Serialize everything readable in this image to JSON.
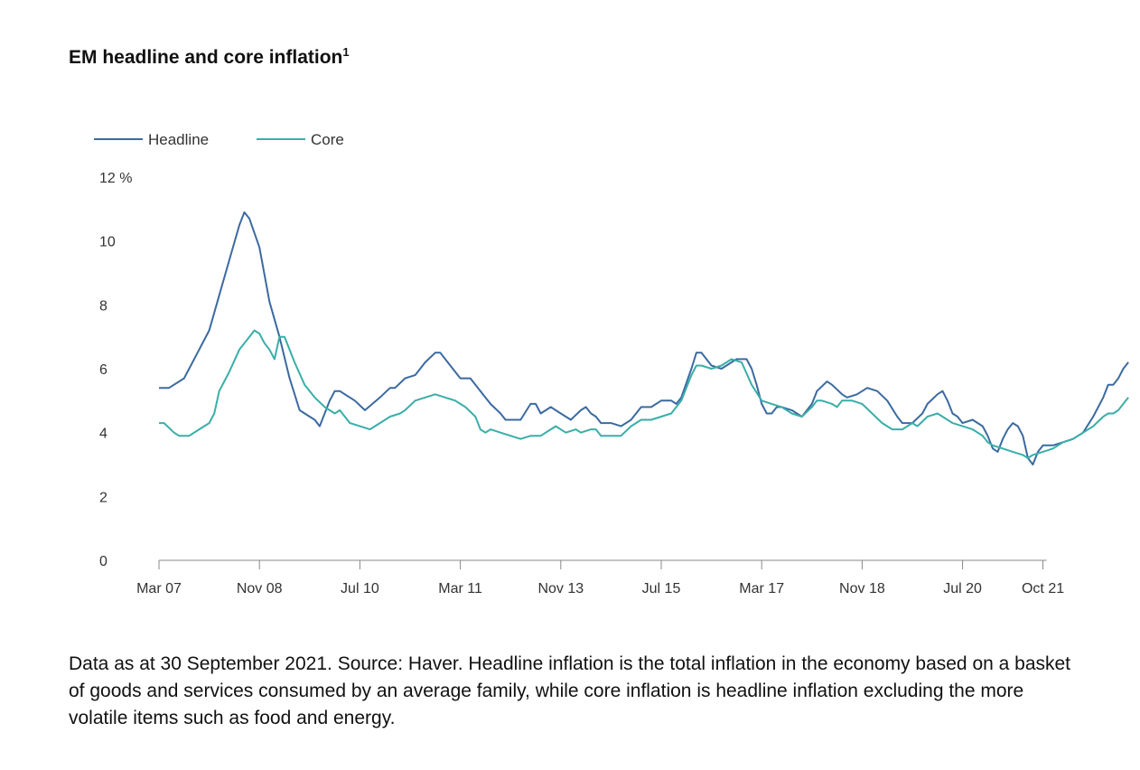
{
  "header": {
    "title": "EM headline and core inflation",
    "footnote_mark": "1"
  },
  "caption": "Data as at 30 September 2021. Source: Haver. Headline inflation is the total inflation in the economy based on a basket of goods and services consumed by an average family, while core inflation is headline inflation excluding the more volatile items such as food and energy.",
  "chart_data": {
    "type": "line",
    "title": "EM headline and core inflation",
    "xlabel": "",
    "ylabel": "%",
    "ylim": [
      0,
      12
    ],
    "y_ticks": [
      "0",
      "2",
      "4",
      "6",
      "8",
      "10",
      "12 %"
    ],
    "x_ticks": [
      {
        "label": "Mar 07",
        "pos": 0
      },
      {
        "label": "Nov 08",
        "pos": 20
      },
      {
        "label": "Jul 10",
        "pos": 40
      },
      {
        "label": "Mar 11",
        "pos": 60
      },
      {
        "label": "Nov 13",
        "pos": 80
      },
      {
        "label": "Jul 15",
        "pos": 100
      },
      {
        "label": "Mar 17",
        "pos": 120
      },
      {
        "label": "Nov 18",
        "pos": 140
      },
      {
        "label": "Jul 20",
        "pos": 160
      },
      {
        "label": "Oct 21",
        "pos": 176
      }
    ],
    "legend": {
      "placement": "top-left"
    },
    "series": [
      {
        "name": "Headline",
        "color": "#3b6aa0",
        "points": [
          [
            0,
            5.4
          ],
          [
            2,
            5.4
          ],
          [
            5,
            5.7
          ],
          [
            8,
            6.6
          ],
          [
            10,
            7.2
          ],
          [
            12,
            8.3
          ],
          [
            14,
            9.4
          ],
          [
            16,
            10.5
          ],
          [
            17,
            10.9
          ],
          [
            18,
            10.7
          ],
          [
            20,
            9.8
          ],
          [
            22,
            8.1
          ],
          [
            24,
            7.0
          ],
          [
            26,
            5.7
          ],
          [
            28,
            4.7
          ],
          [
            30,
            4.5
          ],
          [
            31,
            4.4
          ],
          [
            32,
            4.2
          ],
          [
            34,
            5.0
          ],
          [
            35,
            5.3
          ],
          [
            36,
            5.3
          ],
          [
            39,
            5.0
          ],
          [
            41,
            4.7
          ],
          [
            44,
            5.1
          ],
          [
            46,
            5.4
          ],
          [
            47,
            5.4
          ],
          [
            49,
            5.7
          ],
          [
            51,
            5.8
          ],
          [
            53,
            6.2
          ],
          [
            55,
            6.5
          ],
          [
            56,
            6.5
          ],
          [
            57,
            6.3
          ],
          [
            59,
            5.9
          ],
          [
            60,
            5.7
          ],
          [
            62,
            5.7
          ],
          [
            64,
            5.3
          ],
          [
            66,
            4.9
          ],
          [
            68,
            4.6
          ],
          [
            69,
            4.4
          ],
          [
            70,
            4.4
          ],
          [
            72,
            4.4
          ],
          [
            74,
            4.9
          ],
          [
            75,
            4.9
          ],
          [
            76,
            4.6
          ],
          [
            78,
            4.8
          ],
          [
            80,
            4.6
          ],
          [
            82,
            4.4
          ],
          [
            84,
            4.7
          ],
          [
            85,
            4.8
          ],
          [
            86,
            4.6
          ],
          [
            87,
            4.5
          ],
          [
            88,
            4.3
          ],
          [
            90,
            4.3
          ],
          [
            92,
            4.2
          ],
          [
            94,
            4.4
          ],
          [
            96,
            4.8
          ],
          [
            98,
            4.8
          ],
          [
            100,
            5.0
          ],
          [
            102,
            5.0
          ],
          [
            103,
            4.9
          ],
          [
            104,
            5.1
          ],
          [
            106,
            6.0
          ],
          [
            107,
            6.5
          ],
          [
            108,
            6.5
          ],
          [
            110,
            6.1
          ],
          [
            112,
            6.0
          ],
          [
            114,
            6.2
          ],
          [
            115,
            6.3
          ],
          [
            117,
            6.3
          ],
          [
            118,
            6.0
          ],
          [
            119,
            5.5
          ],
          [
            120,
            4.9
          ],
          [
            121,
            4.6
          ],
          [
            122,
            4.6
          ],
          [
            123,
            4.8
          ],
          [
            124,
            4.8
          ],
          [
            126,
            4.7
          ],
          [
            128,
            4.5
          ],
          [
            130,
            4.9
          ],
          [
            131,
            5.3
          ],
          [
            133,
            5.6
          ],
          [
            134,
            5.5
          ],
          [
            136,
            5.2
          ],
          [
            137,
            5.1
          ],
          [
            139,
            5.2
          ],
          [
            141,
            5.4
          ],
          [
            143,
            5.3
          ],
          [
            145,
            5.0
          ],
          [
            147,
            4.5
          ],
          [
            148,
            4.3
          ],
          [
            150,
            4.3
          ],
          [
            152,
            4.6
          ],
          [
            153,
            4.9
          ],
          [
            155,
            5.2
          ],
          [
            156,
            5.3
          ],
          [
            157,
            5.0
          ],
          [
            158,
            4.6
          ],
          [
            159,
            4.5
          ],
          [
            160,
            4.3
          ],
          [
            162,
            4.4
          ],
          [
            164,
            4.2
          ],
          [
            165,
            3.9
          ],
          [
            166,
            3.5
          ],
          [
            167,
            3.4
          ],
          [
            168,
            3.8
          ],
          [
            169,
            4.1
          ],
          [
            170,
            4.3
          ],
          [
            171,
            4.2
          ],
          [
            172,
            3.9
          ],
          [
            173,
            3.2
          ],
          [
            174,
            3.0
          ],
          [
            175,
            3.4
          ],
          [
            176,
            3.6
          ],
          [
            178,
            3.6
          ],
          [
            180,
            3.7
          ],
          [
            182,
            3.8
          ],
          [
            184,
            4.0
          ],
          [
            186,
            4.5
          ],
          [
            188,
            5.1
          ],
          [
            189,
            5.5
          ],
          [
            190,
            5.5
          ],
          [
            191,
            5.7
          ],
          [
            192,
            6.0
          ],
          [
            193,
            6.2
          ]
        ]
      },
      {
        "name": "Core",
        "color": "#3aaea8",
        "points": [
          [
            0,
            4.3
          ],
          [
            1,
            4.3
          ],
          [
            3,
            4.0
          ],
          [
            4,
            3.9
          ],
          [
            6,
            3.9
          ],
          [
            8,
            4.1
          ],
          [
            10,
            4.3
          ],
          [
            11,
            4.6
          ],
          [
            12,
            5.3
          ],
          [
            14,
            5.9
          ],
          [
            16,
            6.6
          ],
          [
            18,
            7.0
          ],
          [
            19,
            7.2
          ],
          [
            20,
            7.1
          ],
          [
            21,
            6.8
          ],
          [
            22,
            6.6
          ],
          [
            23,
            6.3
          ],
          [
            24,
            7.0
          ],
          [
            25,
            7.0
          ],
          [
            27,
            6.2
          ],
          [
            29,
            5.5
          ],
          [
            31,
            5.1
          ],
          [
            33,
            4.8
          ],
          [
            35,
            4.6
          ],
          [
            36,
            4.7
          ],
          [
            38,
            4.3
          ],
          [
            40,
            4.2
          ],
          [
            42,
            4.1
          ],
          [
            44,
            4.3
          ],
          [
            46,
            4.5
          ],
          [
            48,
            4.6
          ],
          [
            49,
            4.7
          ],
          [
            51,
            5.0
          ],
          [
            53,
            5.1
          ],
          [
            55,
            5.2
          ],
          [
            57,
            5.1
          ],
          [
            59,
            5.0
          ],
          [
            60,
            4.9
          ],
          [
            61,
            4.8
          ],
          [
            63,
            4.5
          ],
          [
            64,
            4.1
          ],
          [
            65,
            4.0
          ],
          [
            66,
            4.1
          ],
          [
            68,
            4.0
          ],
          [
            70,
            3.9
          ],
          [
            72,
            3.8
          ],
          [
            74,
            3.9
          ],
          [
            76,
            3.9
          ],
          [
            78,
            4.1
          ],
          [
            79,
            4.2
          ],
          [
            81,
            4.0
          ],
          [
            83,
            4.1
          ],
          [
            84,
            4.0
          ],
          [
            86,
            4.1
          ],
          [
            87,
            4.1
          ],
          [
            88,
            3.9
          ],
          [
            90,
            3.9
          ],
          [
            92,
            3.9
          ],
          [
            94,
            4.2
          ],
          [
            96,
            4.4
          ],
          [
            98,
            4.4
          ],
          [
            100,
            4.5
          ],
          [
            102,
            4.6
          ],
          [
            104,
            5.0
          ],
          [
            106,
            5.8
          ],
          [
            107,
            6.1
          ],
          [
            108,
            6.1
          ],
          [
            110,
            6.0
          ],
          [
            112,
            6.1
          ],
          [
            114,
            6.3
          ],
          [
            116,
            6.2
          ],
          [
            118,
            5.5
          ],
          [
            120,
            5.0
          ],
          [
            122,
            4.9
          ],
          [
            124,
            4.8
          ],
          [
            126,
            4.6
          ],
          [
            128,
            4.5
          ],
          [
            130,
            4.8
          ],
          [
            131,
            5.0
          ],
          [
            132,
            5.0
          ],
          [
            134,
            4.9
          ],
          [
            135,
            4.8
          ],
          [
            136,
            5.0
          ],
          [
            138,
            5.0
          ],
          [
            140,
            4.9
          ],
          [
            142,
            4.6
          ],
          [
            144,
            4.3
          ],
          [
            146,
            4.1
          ],
          [
            148,
            4.1
          ],
          [
            150,
            4.3
          ],
          [
            151,
            4.2
          ],
          [
            153,
            4.5
          ],
          [
            155,
            4.6
          ],
          [
            156,
            4.5
          ],
          [
            158,
            4.3
          ],
          [
            160,
            4.2
          ],
          [
            162,
            4.1
          ],
          [
            164,
            3.9
          ],
          [
            165,
            3.7
          ],
          [
            166,
            3.6
          ],
          [
            168,
            3.5
          ],
          [
            170,
            3.4
          ],
          [
            172,
            3.3
          ],
          [
            173,
            3.2
          ],
          [
            174,
            3.3
          ],
          [
            176,
            3.4
          ],
          [
            178,
            3.5
          ],
          [
            180,
            3.7
          ],
          [
            182,
            3.8
          ],
          [
            184,
            4.0
          ],
          [
            186,
            4.2
          ],
          [
            188,
            4.5
          ],
          [
            189,
            4.6
          ],
          [
            190,
            4.6
          ],
          [
            191,
            4.7
          ],
          [
            192,
            4.9
          ],
          [
            193,
            5.1
          ]
        ]
      }
    ]
  }
}
